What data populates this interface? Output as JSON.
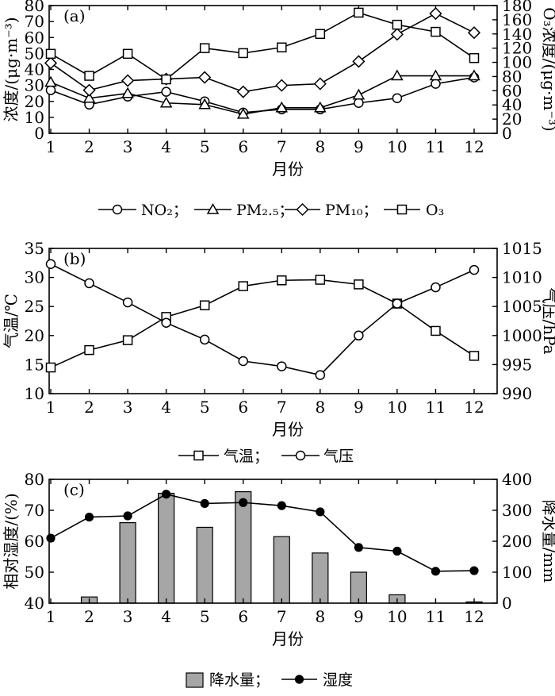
{
  "chart_data": [
    {
      "type": "line",
      "panel_label": "(a)",
      "xlabel": "月份",
      "categories": [
        "1",
        "2",
        "3",
        "4",
        "5",
        "6",
        "7",
        "8",
        "9",
        "10",
        "11",
        "12"
      ],
      "ylabel_left": "浓度/(μg·m⁻³)",
      "ylabel_right": "O₃浓度/(μg·m⁻³)",
      "ylim_left": [
        0,
        80
      ],
      "ylim_right": [
        0,
        180
      ],
      "yticks_left": [
        0,
        10,
        20,
        30,
        40,
        50,
        60,
        70,
        80
      ],
      "yticks_right": [
        0,
        20,
        40,
        60,
        80,
        100,
        120,
        140,
        160,
        180
      ],
      "series": [
        {
          "name": "NO₂",
          "axis": "left",
          "marker": "circle",
          "values": [
            27,
            18,
            23,
            26,
            20,
            13,
            15,
            15,
            19,
            22,
            31,
            35
          ]
        },
        {
          "name": "PM₂.₅",
          "axis": "left",
          "marker": "triangle",
          "values": [
            32,
            22,
            25,
            19,
            18,
            12,
            16,
            16,
            24,
            36,
            36,
            36
          ]
        },
        {
          "name": "PM₁₀",
          "axis": "left",
          "marker": "diamond",
          "values": [
            44,
            27,
            33,
            34,
            35,
            26,
            30,
            31,
            45,
            62,
            75,
            63
          ]
        },
        {
          "name": "O₃",
          "axis": "right",
          "marker": "square",
          "values": [
            112,
            81,
            112,
            76,
            120,
            113,
            121,
            140,
            170,
            153,
            143,
            106
          ]
        }
      ],
      "legend": [
        "NO₂；",
        "PM₂.₅；",
        "PM₁₀；",
        "O₃"
      ],
      "legend_position": "bottom"
    },
    {
      "type": "line",
      "panel_label": "(b)",
      "xlabel": "月份",
      "categories": [
        "1",
        "2",
        "3",
        "4",
        "5",
        "6",
        "7",
        "8",
        "9",
        "10",
        "11",
        "12"
      ],
      "ylabel_left": "气温/℃",
      "ylabel_right": "气压/hPa",
      "ylim_left": [
        10,
        35
      ],
      "ylim_right": [
        990,
        1015
      ],
      "yticks_left": [
        10,
        15,
        20,
        25,
        30,
        35
      ],
      "yticks_right": [
        990,
        995,
        1000,
        1005,
        1010,
        1015
      ],
      "series": [
        {
          "name": "气温",
          "axis": "left",
          "marker": "square",
          "values": [
            14.5,
            17.5,
            19.2,
            23.2,
            25.2,
            28.5,
            29.5,
            29.6,
            28.8,
            25.5,
            20.8,
            16.5
          ]
        },
        {
          "name": "气压",
          "axis": "right",
          "marker": "circle",
          "values": [
            1012.3,
            1009.0,
            1005.7,
            1002.2,
            999.3,
            995.6,
            994.7,
            993.2,
            1000.0,
            1005.5,
            1008.3,
            1011.3
          ]
        }
      ],
      "legend": [
        "气温；",
        "气压"
      ],
      "legend_position": "bottom"
    },
    {
      "type": "bar",
      "panel_label": "(c)",
      "xlabel": "月份",
      "categories": [
        "1",
        "2",
        "3",
        "4",
        "5",
        "6",
        "7",
        "8",
        "9",
        "10",
        "11",
        "12"
      ],
      "ylabel_left": "相对湿度/(%)",
      "ylabel_right": "降水量/mm",
      "ylim_left": [
        40,
        80
      ],
      "ylim_right": [
        0,
        400
      ],
      "yticks_left": [
        40,
        50,
        60,
        70,
        80
      ],
      "yticks_right": [
        0,
        100,
        200,
        300,
        400
      ],
      "series": [
        {
          "name": "降水量",
          "axis": "right",
          "kind": "bar",
          "values": [
            0,
            20,
            260,
            355,
            245,
            360,
            215,
            162,
            100,
            27,
            0,
            4
          ]
        },
        {
          "name": "湿度",
          "axis": "left",
          "kind": "line",
          "marker": "filled-circle",
          "values": [
            61,
            67.8,
            68.2,
            75.2,
            72.2,
            72.5,
            71.5,
            69.5,
            58,
            56.8,
            50.3,
            50.5
          ]
        }
      ],
      "legend": [
        "降水量；",
        "湿度"
      ],
      "legend_position": "bottom"
    }
  ]
}
